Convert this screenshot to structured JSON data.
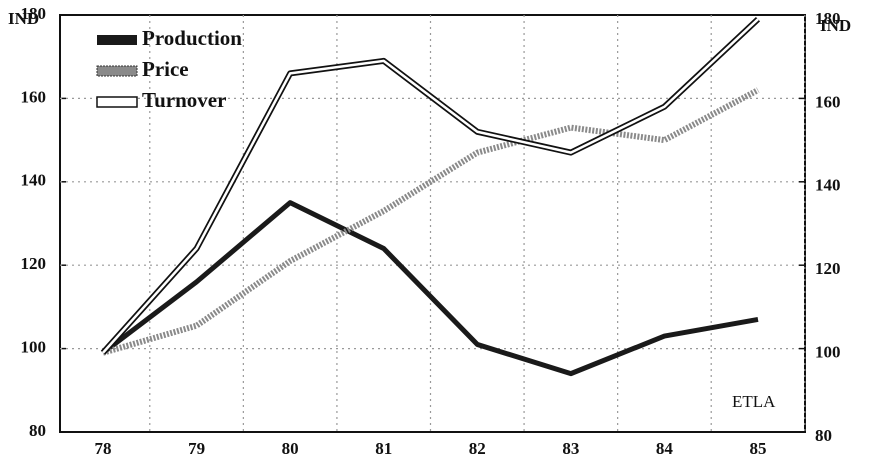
{
  "chart_data": {
    "type": "line",
    "y_label": "IND",
    "y2_label": "IND",
    "annotation": "ETLA",
    "categories": [
      "78",
      "79",
      "80",
      "81",
      "82",
      "83",
      "84",
      "85"
    ],
    "series": [
      {
        "name": "Production",
        "color": "#1a1a1a",
        "values": [
          99,
          116,
          135,
          124,
          101,
          94,
          103,
          107
        ]
      },
      {
        "name": "Price",
        "color": "#8a8a8a",
        "values": [
          99,
          105.5,
          121,
          133,
          147,
          153,
          150,
          162
        ]
      },
      {
        "name": "Turnover",
        "color": "#ffffff",
        "values": [
          99,
          124,
          166,
          169,
          152,
          147,
          158,
          179
        ]
      }
    ],
    "ylim": [
      80,
      180
    ],
    "yticks": [
      80,
      100,
      120,
      140,
      160,
      180
    ],
    "y2lim": [
      80,
      180
    ],
    "y2ticks": [
      80,
      100,
      120,
      140,
      160,
      180
    ],
    "grid": true,
    "legend": "upper left"
  }
}
